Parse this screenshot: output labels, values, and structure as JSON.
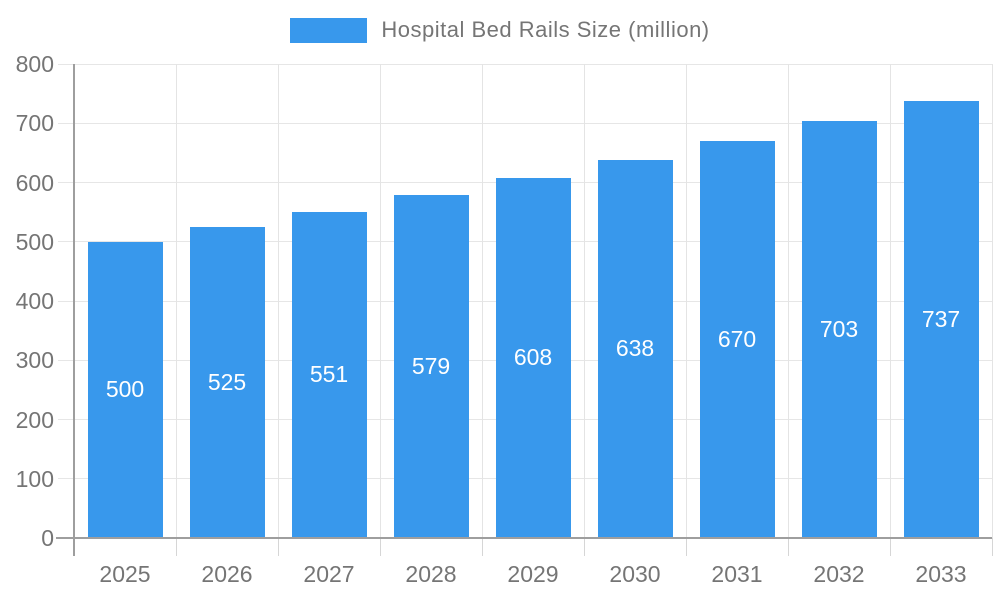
{
  "chart_data": {
    "type": "bar",
    "title": "Hospital Bed Rails Size (million)",
    "legend": {
      "position": "top",
      "items": [
        {
          "label": "Hospital Bed Rails Size (million)",
          "swatch_color": "#3898ec"
        }
      ]
    },
    "categories": [
      "2025",
      "2026",
      "2027",
      "2028",
      "2029",
      "2030",
      "2031",
      "2032",
      "2033"
    ],
    "series": [
      {
        "name": "Hospital Bed Rails Size (million)",
        "values": [
          500,
          525,
          551,
          579,
          608,
          638,
          670,
          703,
          737
        ]
      }
    ],
    "value_labels": [
      "500",
      "525",
      "551",
      "579",
      "608",
      "638",
      "670",
      "703",
      "737"
    ],
    "value_labels_position": "inside-center",
    "xlabel": "",
    "ylabel": "",
    "ylim": [
      0,
      800
    ],
    "ytick_step": 100,
    "yticks": [
      "0",
      "100",
      "200",
      "300",
      "400",
      "500",
      "600",
      "700",
      "800"
    ],
    "grid": true,
    "colors": {
      "bar": "#3898ec",
      "value_label": "#ffffff",
      "axis_text": "#757575",
      "legend_text": "#757575",
      "axis_line": "#9e9e9e",
      "grid_line": "#e6e6e6",
      "category_grid_line": "#e4e4e4",
      "boundary_tick": "#d6d6d6",
      "background": "#ffffff"
    }
  }
}
